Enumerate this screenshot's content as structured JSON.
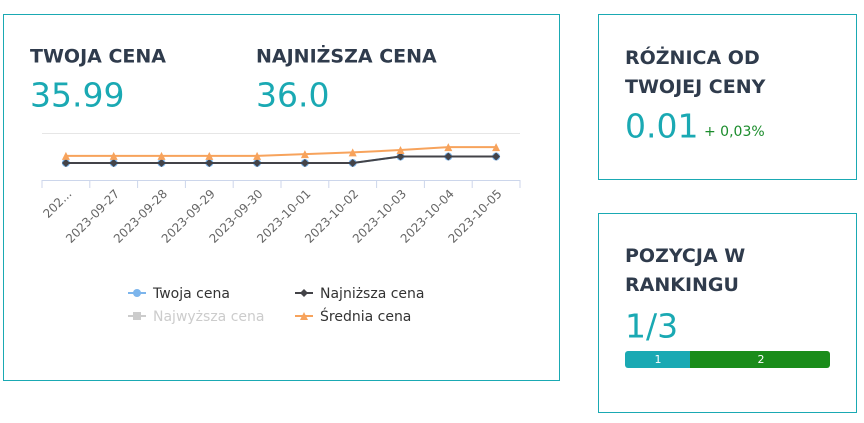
{
  "price_card": {
    "own_label": "TWOJA CENA",
    "own_value": "35.99",
    "lowest_label": "NAJNIŻSZA CENA",
    "lowest_value": "36.0"
  },
  "difference_card": {
    "title": "RÓŻNICA OD TWOJEJ CENY",
    "value": "0.01",
    "change": "+ 0,03%"
  },
  "ranking_card": {
    "title": "POZYCJA W RANKINGU",
    "value": "1/3",
    "segments": [
      "1",
      "2"
    ]
  },
  "chart_data": {
    "type": "line",
    "categories": [
      "202...",
      "2023-09-27",
      "2023-09-28",
      "2023-09-29",
      "2023-09-30",
      "2023-10-01",
      "2023-10-02",
      "2023-10-03",
      "2023-10-04",
      "2023-10-05"
    ],
    "ylim": [
      32,
      40
    ],
    "series": [
      {
        "name": "Twoja cena",
        "color": "#7cb5ec",
        "marker": "circle",
        "values": [
          34.9,
          34.9,
          34.9,
          34.9,
          34.9,
          34.9,
          34.9,
          35.99,
          35.99,
          35.99
        ]
      },
      {
        "name": "Najniższa cena",
        "color": "#434348",
        "marker": "diamond",
        "values": [
          34.9,
          34.9,
          34.9,
          34.9,
          34.9,
          34.9,
          34.9,
          36.0,
          36.0,
          36.0
        ]
      },
      {
        "name": "Najwyższa cena",
        "color": "#cccccc",
        "marker": "square",
        "hidden": true
      },
      {
        "name": "Średnia cena",
        "color": "#f7a35c",
        "marker": "triangle",
        "values": [
          36.1,
          36.1,
          36.1,
          36.1,
          36.1,
          36.4,
          36.7,
          37.1,
          37.6,
          37.6
        ]
      }
    ]
  }
}
